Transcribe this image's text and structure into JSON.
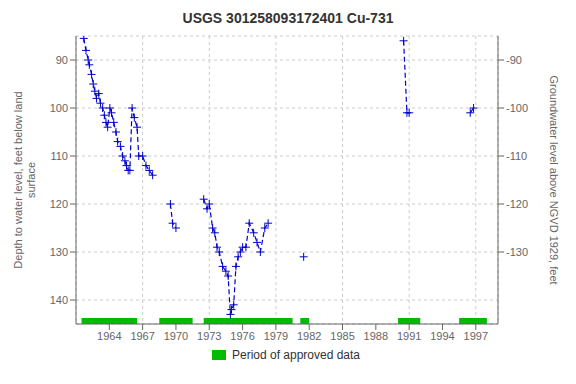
{
  "chart_data": {
    "type": "line",
    "title": "USGS 301258093172401 Cu-731",
    "ylabel": "Depth to water level, feet below land\nsurface",
    "y2label": "Groundwater level above NGVD 1929, feet",
    "xlim": [
      1961.0,
      1999.0
    ],
    "xticks": [
      1964,
      1967,
      1970,
      1973,
      1976,
      1979,
      1982,
      1985,
      1988,
      1991,
      1994,
      1997
    ],
    "ylim": [
      145,
      85
    ],
    "yticks": [
      90,
      100,
      110,
      120,
      130,
      140
    ],
    "y2lim": [
      -145,
      -85
    ],
    "y2ticks": [
      -90,
      -100,
      -110,
      -120,
      -130
    ],
    "grid": true,
    "legend": "bottom",
    "x": [
      1961.7,
      1961.9,
      1962.1,
      1962.2,
      1962.4,
      1962.55,
      1962.7,
      1962.85,
      1963.05,
      1963.2,
      1963.4,
      1963.55,
      1963.7,
      1963.85,
      1964.05,
      1964.2,
      1964.4,
      1964.6,
      1964.75,
      1965.0,
      1965.2,
      1965.4,
      1965.55,
      1965.7,
      1965.85,
      1966.05,
      1966.25,
      1966.5,
      1966.65,
      1967.0,
      1967.3,
      1967.6,
      1967.9,
      null,
      1969.5,
      1969.7,
      1970.0,
      null,
      1972.5,
      1972.8,
      1973.0,
      1973.3,
      1973.5,
      1973.7,
      1973.9,
      1974.2,
      1974.5,
      1974.7,
      1974.9,
      1975.0,
      1975.2,
      1975.4,
      1975.6,
      1975.8,
      1976.0,
      1976.3,
      1976.6,
      1977.0,
      1977.3,
      1977.6,
      1978.0,
      1978.3,
      null,
      1981.5,
      null,
      1990.5,
      1990.8,
      1991.0,
      null,
      1996.5,
      1996.8
    ],
    "series": [
      {
        "color": "#0000cc",
        "marker": "plus",
        "line_style": "dashed",
        "values": [
          85.5,
          88,
          90,
          91,
          93,
          95,
          96.5,
          98,
          97,
          99,
          100,
          101.5,
          103,
          104,
          100,
          101,
          103,
          105,
          107,
          108,
          110,
          111,
          112,
          113,
          113,
          100,
          102,
          104,
          110,
          110,
          112,
          113,
          114,
          null,
          120,
          124,
          125,
          null,
          119,
          121,
          120,
          125,
          126,
          129,
          130,
          133,
          134,
          135,
          143,
          142,
          141,
          133,
          131,
          130,
          129,
          129,
          124,
          126,
          128,
          130,
          125,
          124,
          null,
          131,
          null,
          86,
          101,
          101,
          null,
          101,
          100
        ]
      }
    ],
    "approved_periods": {
      "name": "Period of approved data",
      "color": "#00bb00",
      "ranges": [
        [
          1961.5,
          1966.5
        ],
        [
          1968.5,
          1971.5
        ],
        [
          1972.5,
          1980.5
        ],
        [
          1981.2,
          1982.0
        ],
        [
          1990.0,
          1992.0
        ],
        [
          1995.5,
          1998.0
        ]
      ]
    }
  }
}
